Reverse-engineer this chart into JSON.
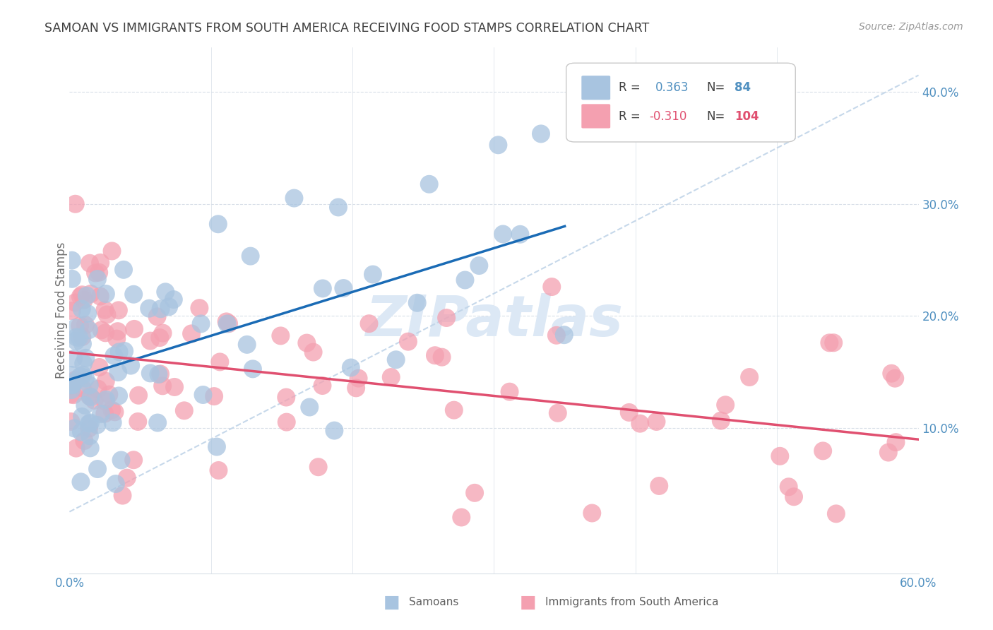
{
  "title": "SAMOAN VS IMMIGRANTS FROM SOUTH AMERICA RECEIVING FOOD STAMPS CORRELATION CHART",
  "source": "Source: ZipAtlas.com",
  "ylabel": "Receiving Food Stamps",
  "xlim": [
    0.0,
    0.6
  ],
  "ylim": [
    -0.03,
    0.44
  ],
  "blue_color": "#a8c4e0",
  "pink_color": "#f4a0b0",
  "blue_line_color": "#1a6bb5",
  "pink_line_color": "#e05070",
  "dashed_line_color": "#c0d4e8",
  "watermark_color": "#dce8f5",
  "grid_color": "#d8dfe8",
  "title_color": "#404040",
  "axis_label_color": "#5090c0",
  "blue_seed": 77,
  "pink_seed": 33
}
